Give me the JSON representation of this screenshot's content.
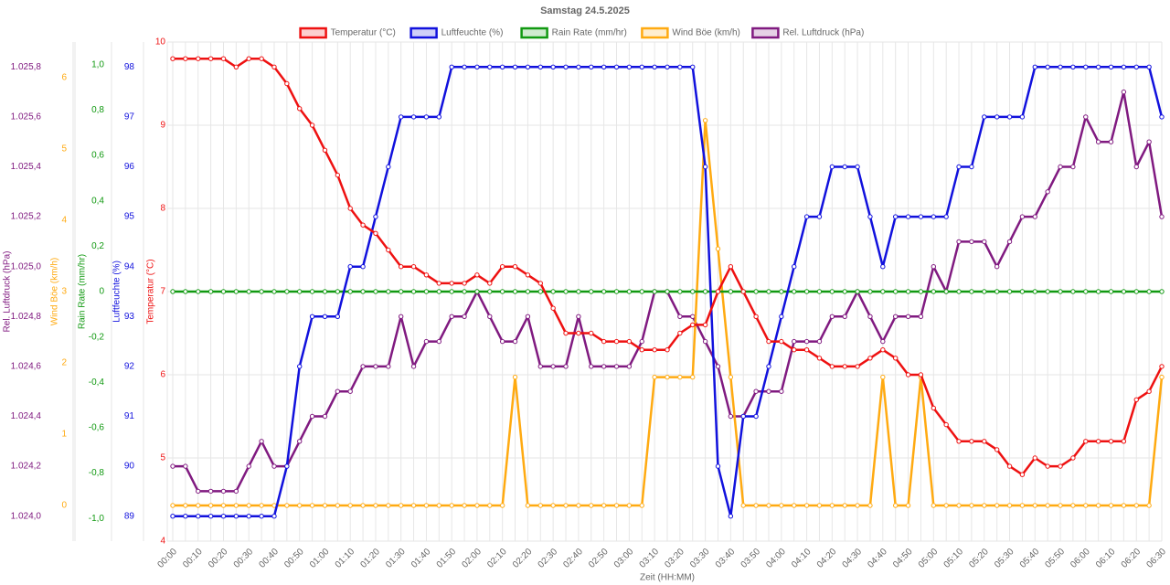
{
  "chart_data": {
    "type": "line",
    "title": "Samstag 24.5.2025",
    "xlabel": "Zeit (HH:MM)",
    "categories": [
      "00:00",
      null,
      "00:10",
      null,
      "00:20",
      null,
      "00:30",
      null,
      "00:40",
      null,
      "00:50",
      null,
      "01:00",
      null,
      "01:10",
      null,
      "01:20",
      null,
      "01:30",
      null,
      "01:40",
      null,
      "01:50",
      null,
      "02:00",
      null,
      "02:10",
      null,
      "02:20",
      null,
      "02:30",
      null,
      "02:40",
      null,
      "02:50",
      null,
      "03:00",
      null,
      "03:10",
      null,
      "03:20",
      null,
      "03:30",
      null,
      "03:40",
      null,
      "03:50",
      null,
      "04:00",
      null,
      "04:10",
      null,
      "04:20",
      null,
      "04:30",
      null,
      "04:40",
      null,
      "04:50",
      null,
      "05:00",
      null,
      "05:10",
      null,
      "05:20",
      null,
      "05:30",
      null,
      "05:40",
      null,
      "05:50",
      null,
      "06:00",
      null,
      "06:10",
      null,
      "06:20",
      null,
      "06:30"
    ],
    "grid": true,
    "ylabel": "Temperatur (°C)",
    "ylim": [
      4,
      10
    ],
    "yticks": [
      4,
      5,
      6,
      7,
      8,
      9,
      10
    ],
    "y2label": "Luftfeuchte (%)",
    "y2lim": [
      88.5,
      98.5
    ],
    "y2ticks": [
      89,
      90,
      91,
      92,
      93,
      94,
      95,
      96,
      97,
      98
    ],
    "y3label": "Rain Rate (mm/hr)",
    "y3lim": [
      -1.1,
      1.1
    ],
    "y3ticks": [
      {
        "value": -1,
        "label": "-1,0"
      },
      {
        "value": -0.8,
        "label": "-0,8"
      },
      {
        "value": -0.6,
        "label": "-0,6"
      },
      {
        "value": -0.4,
        "label": "-0,4"
      },
      {
        "value": -0.2,
        "label": "-0,2"
      },
      0,
      {
        "value": 0.2,
        "label": "0,2"
      },
      {
        "value": 0.4,
        "label": "0,4"
      },
      {
        "value": 0.6,
        "label": "0,6"
      },
      {
        "value": 0.8,
        "label": "0,8"
      },
      {
        "value": 1,
        "label": "1,0"
      }
    ],
    "y4label": "Wind Böe (km/h)",
    "y4lim": [
      -0.5,
      6.5
    ],
    "y4ticks": [
      0,
      1,
      2,
      3,
      4,
      5,
      6
    ],
    "y5label": "Rel. Luftdruck (hPa)",
    "y5lim": [
      1023.9,
      1025.9
    ],
    "y5ticks": [
      {
        "value": 1024.0,
        "label": "1.024,0"
      },
      {
        "value": 1024.2,
        "label": "1.024,2"
      },
      {
        "value": 1024.4,
        "label": "1.024,4"
      },
      {
        "value": 1024.6,
        "label": "1.024,6"
      },
      {
        "value": 1024.8,
        "label": "1.024,8"
      },
      {
        "value": 1025.0,
        "label": "1.025,0"
      },
      {
        "value": 1025.2,
        "label": "1.025,2"
      },
      {
        "value": 1025.4,
        "label": "1.025,4"
      },
      {
        "value": 1025.6,
        "label": "1.025,6"
      },
      {
        "value": 1025.8,
        "label": "1.025,8"
      }
    ],
    "series": [
      {
        "name": "Temperatur (°C)",
        "color": "#ee1111",
        "axis": "y",
        "values": [
          9.8,
          9.8,
          9.8,
          9.8,
          9.8,
          9.7,
          9.8,
          9.8,
          9.7,
          9.5,
          9.2,
          9.0,
          8.7,
          8.4,
          8.0,
          7.8,
          7.7,
          7.5,
          7.3,
          7.3,
          7.2,
          7.1,
          7.1,
          7.1,
          7.2,
          7.1,
          7.3,
          7.3,
          7.2,
          7.1,
          6.8,
          6.5,
          6.5,
          6.5,
          6.4,
          6.4,
          6.4,
          6.3,
          6.3,
          6.3,
          6.5,
          6.6,
          6.6,
          7.0,
          7.3,
          7.0,
          6.7,
          6.4,
          6.4,
          6.3,
          6.3,
          6.2,
          6.1,
          6.1,
          6.1,
          6.2,
          6.3,
          6.2,
          6.0,
          6.0,
          5.6,
          5.4,
          5.2,
          5.2,
          5.2,
          5.1,
          4.9,
          4.8,
          5.0,
          4.9,
          4.9,
          5.0,
          5.2,
          5.2,
          5.2,
          5.2,
          5.7,
          5.8,
          6.1
        ]
      },
      {
        "name": "Luftfeuchte (%)",
        "color": "#1111dd",
        "axis": "y2",
        "values": [
          89,
          89,
          89,
          89,
          89,
          89,
          89,
          89,
          89,
          90,
          92,
          93,
          93,
          93,
          94,
          94,
          95,
          96,
          97,
          97,
          97,
          97,
          98,
          98,
          98,
          98,
          98,
          98,
          98,
          98,
          98,
          98,
          98,
          98,
          98,
          98,
          98,
          98,
          98,
          98,
          98,
          98,
          96,
          90,
          89,
          91,
          91,
          92,
          93,
          94,
          95,
          95,
          96,
          96,
          96,
          95,
          94,
          95,
          95,
          95,
          95,
          95,
          96,
          96,
          97,
          97,
          97,
          97,
          98,
          98,
          98,
          98,
          98,
          98,
          98,
          98,
          98,
          98,
          97
        ]
      },
      {
        "name": "Rain Rate (mm/hr)",
        "color": "#119911",
        "axis": "y3",
        "values": [
          0,
          0,
          0,
          0,
          0,
          0,
          0,
          0,
          0,
          0,
          0,
          0,
          0,
          0,
          0,
          0,
          0,
          0,
          0,
          0,
          0,
          0,
          0,
          0,
          0,
          0,
          0,
          0,
          0,
          0,
          0,
          0,
          0,
          0,
          0,
          0,
          0,
          0,
          0,
          0,
          0,
          0,
          0,
          0,
          0,
          0,
          0,
          0,
          0,
          0,
          0,
          0,
          0,
          0,
          0,
          0,
          0,
          0,
          0,
          0,
          0,
          0,
          0,
          0,
          0,
          0,
          0,
          0,
          0,
          0,
          0,
          0,
          0,
          0,
          0,
          0,
          0,
          0,
          0
        ]
      },
      {
        "name": "Wind Böe (km/h)",
        "color": "#ffaa11",
        "axis": "y4",
        "values": [
          0,
          0,
          0,
          0,
          0,
          0,
          0,
          0,
          0,
          0,
          0,
          0,
          0,
          0,
          0,
          0,
          0,
          0,
          0,
          0,
          0,
          0,
          0,
          0,
          0,
          0,
          0,
          1.8,
          0,
          0,
          0,
          0,
          0,
          0,
          0,
          0,
          0,
          0,
          1.8,
          1.8,
          1.8,
          1.8,
          5.4,
          3.6,
          1.8,
          0,
          0,
          0,
          0,
          0,
          0,
          0,
          0,
          0,
          0,
          0,
          1.8,
          0,
          0,
          1.8,
          0,
          0,
          0,
          0,
          0,
          0,
          0,
          0,
          0,
          0,
          0,
          0,
          0,
          0,
          0,
          0,
          0,
          0,
          1.8
        ]
      },
      {
        "name": "Rel. Luftdruck (hPa)",
        "color": "#801a80",
        "axis": "y5",
        "values": [
          1024.2,
          1024.2,
          1024.1,
          1024.1,
          1024.1,
          1024.1,
          1024.2,
          1024.3,
          1024.2,
          1024.2,
          1024.3,
          1024.4,
          1024.4,
          1024.5,
          1024.5,
          1024.6,
          1024.6,
          1024.6,
          1024.8,
          1024.6,
          1024.7,
          1024.7,
          1024.8,
          1024.8,
          1024.9,
          1024.8,
          1024.7,
          1024.7,
          1024.8,
          1024.6,
          1024.6,
          1024.6,
          1024.8,
          1024.6,
          1024.6,
          1024.6,
          1024.6,
          1024.7,
          1024.9,
          1024.9,
          1024.8,
          1024.8,
          1024.7,
          1024.6,
          1024.4,
          1024.4,
          1024.5,
          1024.5,
          1024.5,
          1024.7,
          1024.7,
          1024.7,
          1024.8,
          1024.8,
          1024.9,
          1024.8,
          1024.7,
          1024.8,
          1024.8,
          1024.8,
          1025.0,
          1024.9,
          1025.1,
          1025.1,
          1025.1,
          1025.0,
          1025.1,
          1025.2,
          1025.2,
          1025.3,
          1025.4,
          1025.4,
          1025.6,
          1025.5,
          1025.5,
          1025.7,
          1025.4,
          1025.5,
          1025.2
        ]
      }
    ]
  }
}
